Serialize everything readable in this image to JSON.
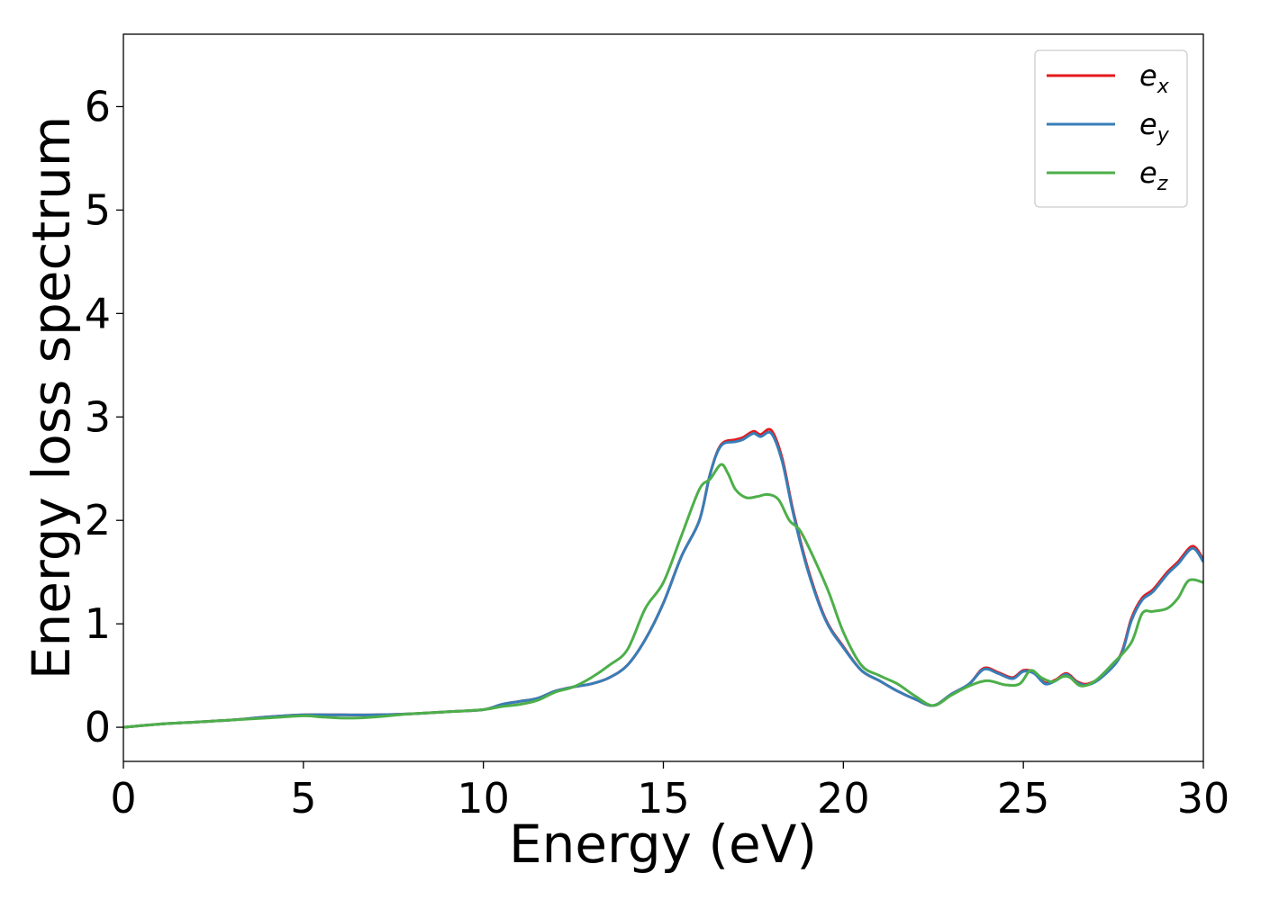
{
  "chart_data": {
    "type": "line",
    "title": "",
    "xlabel": "Energy (eV)",
    "ylabel": "Energy loss spectrum",
    "xlim": [
      0,
      30
    ],
    "ylim": [
      -0.33,
      6.7
    ],
    "xticks": [
      0,
      5,
      10,
      15,
      20,
      25,
      30
    ],
    "xtick_labels": [
      "0",
      "5",
      "10",
      "15",
      "20",
      "25",
      "30"
    ],
    "yticks": [
      0,
      1,
      2,
      3,
      4,
      5,
      6
    ],
    "ytick_labels": [
      "0",
      "1",
      "2",
      "3",
      "4",
      "5",
      "6"
    ],
    "grid": false,
    "legend_position": "top-right",
    "series": [
      {
        "name": "e",
        "subscript": "x",
        "color": "#e41a1c",
        "x": [
          0,
          1,
          2,
          3,
          4,
          5,
          6,
          7,
          8,
          9,
          10,
          10.5,
          11,
          11.5,
          12,
          12.5,
          13,
          13.5,
          14,
          14.5,
          15,
          15.5,
          16,
          16.3,
          16.6,
          17,
          17.2,
          17.5,
          17.7,
          18,
          18.3,
          18.6,
          19,
          19.5,
          20,
          20.5,
          21,
          21.5,
          22,
          22.5,
          23,
          23.5,
          23.9,
          24.3,
          24.7,
          25,
          25.3,
          25.6,
          25.9,
          26.2,
          26.5,
          26.8,
          27.2,
          27.7,
          28,
          28.3,
          28.6,
          29,
          29.3,
          29.7,
          30
        ],
        "y": [
          0,
          0.03,
          0.05,
          0.07,
          0.1,
          0.12,
          0.12,
          0.12,
          0.13,
          0.15,
          0.17,
          0.22,
          0.25,
          0.28,
          0.35,
          0.39,
          0.42,
          0.48,
          0.6,
          0.85,
          1.2,
          1.65,
          2.0,
          2.45,
          2.73,
          2.78,
          2.8,
          2.86,
          2.83,
          2.87,
          2.6,
          2.1,
          1.55,
          1.05,
          0.78,
          0.55,
          0.45,
          0.35,
          0.27,
          0.21,
          0.32,
          0.42,
          0.57,
          0.53,
          0.48,
          0.55,
          0.53,
          0.43,
          0.46,
          0.52,
          0.44,
          0.42,
          0.5,
          0.7,
          1.05,
          1.25,
          1.33,
          1.5,
          1.6,
          1.75,
          1.62
        ]
      },
      {
        "name": "e",
        "subscript": "y",
        "color": "#377eb8",
        "x": [
          0,
          1,
          2,
          3,
          4,
          5,
          6,
          7,
          8,
          9,
          10,
          10.5,
          11,
          11.5,
          12,
          12.5,
          13,
          13.5,
          14,
          14.5,
          15,
          15.5,
          16,
          16.3,
          16.6,
          17,
          17.2,
          17.5,
          17.7,
          18,
          18.3,
          18.6,
          19,
          19.5,
          20,
          20.5,
          21,
          21.5,
          22,
          22.5,
          23,
          23.5,
          23.9,
          24.3,
          24.7,
          25,
          25.3,
          25.6,
          25.9,
          26.2,
          26.5,
          26.8,
          27.2,
          27.7,
          28,
          28.3,
          28.6,
          29,
          29.3,
          29.7,
          30
        ],
        "y": [
          0,
          0.03,
          0.05,
          0.07,
          0.1,
          0.12,
          0.12,
          0.12,
          0.13,
          0.15,
          0.17,
          0.22,
          0.25,
          0.28,
          0.35,
          0.39,
          0.42,
          0.48,
          0.6,
          0.85,
          1.2,
          1.65,
          2.0,
          2.45,
          2.72,
          2.76,
          2.78,
          2.84,
          2.81,
          2.84,
          2.57,
          2.08,
          1.53,
          1.04,
          0.77,
          0.55,
          0.45,
          0.35,
          0.27,
          0.21,
          0.32,
          0.42,
          0.56,
          0.52,
          0.47,
          0.54,
          0.52,
          0.42,
          0.45,
          0.51,
          0.43,
          0.41,
          0.49,
          0.69,
          1.03,
          1.23,
          1.31,
          1.48,
          1.58,
          1.73,
          1.6
        ]
      },
      {
        "name": "e",
        "subscript": "z",
        "color": "#4daf4a",
        "x": [
          0,
          1,
          2,
          3,
          4,
          5,
          5.5,
          6,
          6.5,
          7,
          8,
          9,
          10,
          10.5,
          11,
          11.5,
          12,
          12.5,
          13,
          13.5,
          14,
          14.5,
          15,
          15.5,
          16,
          16.3,
          16.6,
          16.8,
          17,
          17.3,
          17.6,
          17.9,
          18.2,
          18.5,
          18.8,
          19.2,
          19.6,
          20,
          20.5,
          21,
          21.5,
          22,
          22.5,
          23,
          23.5,
          24,
          24.5,
          24.9,
          25.2,
          25.5,
          25.8,
          26.1,
          26.3,
          26.6,
          27,
          27.5,
          28,
          28.3,
          28.6,
          29,
          29.3,
          29.6,
          30
        ],
        "y": [
          0,
          0.03,
          0.05,
          0.07,
          0.09,
          0.11,
          0.1,
          0.09,
          0.09,
          0.1,
          0.13,
          0.15,
          0.17,
          0.2,
          0.22,
          0.26,
          0.34,
          0.39,
          0.48,
          0.6,
          0.75,
          1.15,
          1.4,
          1.85,
          2.3,
          2.4,
          2.54,
          2.45,
          2.3,
          2.22,
          2.23,
          2.25,
          2.2,
          2.0,
          1.9,
          1.62,
          1.3,
          0.92,
          0.6,
          0.5,
          0.42,
          0.3,
          0.21,
          0.31,
          0.4,
          0.45,
          0.41,
          0.42,
          0.55,
          0.48,
          0.44,
          0.49,
          0.48,
          0.4,
          0.45,
          0.62,
          0.82,
          1.1,
          1.12,
          1.15,
          1.25,
          1.42,
          1.4
        ]
      }
    ]
  }
}
